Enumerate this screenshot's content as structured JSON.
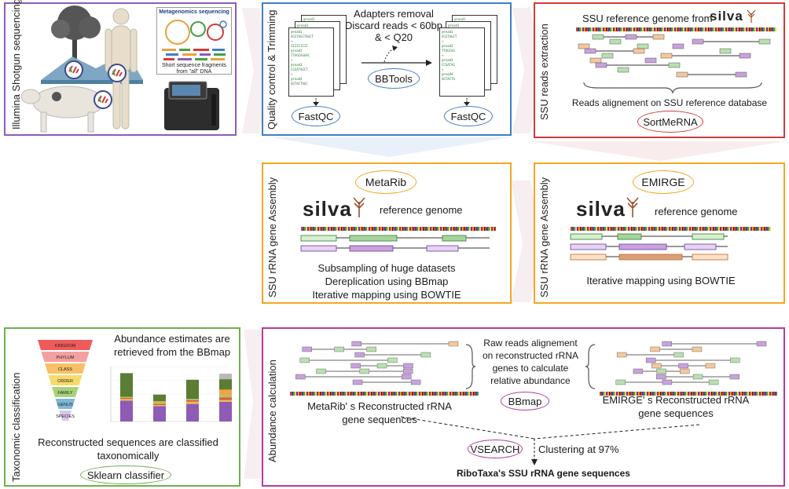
{
  "colors": {
    "purple": "#8e5bb5",
    "blue": "#3f7fc4",
    "red": "#d03b3b",
    "orange": "#f5a623",
    "green": "#6fb04d",
    "magenta": "#b73c9d",
    "chevron": "#f2e8ec"
  },
  "p1": {
    "label": "Illumina Shotgun sequencing",
    "box_title": "Metagenomics sequencing",
    "box_caption": "Short sequence fragments from \"all\" DNA"
  },
  "p2": {
    "label": "Quality control & Trimming",
    "step_text": "Adapters removal Discard reads < 60bp & < Q20",
    "tool_mid": "BBTools",
    "tool_left": "FastQC",
    "tool_right": "FastQC"
  },
  "p3": {
    "label": "SSU reads extraction",
    "title": "SSU reference genome from",
    "silva": "silva",
    "caption": "Reads alignement on SSU reference database",
    "tool": "SortMeRNA"
  },
  "p4": {
    "label": "SSU rRNA gene Assembly",
    "tool": "MetaRib",
    "silva": "silva",
    "ref": "reference genome",
    "lines": [
      "Subsampling of huge datasets",
      "Dereplication using BBmap",
      "Iterative mapping using BOWTIE"
    ]
  },
  "p5": {
    "label": "SSU rRNA gene Assembly",
    "tool": "EMIRGE",
    "silva": "silva",
    "ref": "reference genome",
    "line": "Iterative mapping using BOWTIE"
  },
  "p6": {
    "label": "Taxonomic classification",
    "title": "Abundance estimates are retrieved from the BBmap",
    "ranks": [
      "KINGDOM",
      "PHYLUM",
      "CLASS",
      "ORDER",
      "FAMILY",
      "GENUS",
      "SPECIES"
    ],
    "caption": "Reconstructed sequences are classified taxonomically",
    "tool": "Sklearn classifier"
  },
  "p7": {
    "label": "Abundance calculation",
    "mid_text": "Raw reads alignement on reconstructed rRNA genes to calculate relative abundance",
    "tool_mid": "BBmap",
    "left_caption": "MetaRib' s Reconstructed rRNA gene sequences",
    "right_caption": "EMIRGE' s Reconstructed rRNA gene sequences",
    "tool_cluster": "VSEARCH",
    "cluster_text": "Clustering at 97%",
    "final": "RiboTaxa's SSU rRNA gene sequences"
  },
  "chart_data": {
    "type": "bar",
    "categories": [
      "",
      "",
      "",
      ""
    ],
    "series": [
      {
        "values": [
          0.38,
          0.28,
          0.32,
          0.36
        ],
        "color": "#8e5bb5"
      },
      {
        "values": [
          0.03,
          0.02,
          0.04,
          0.03
        ],
        "color": "#e8c14a"
      },
      {
        "values": [
          0.02,
          0.02,
          0.03,
          0.05
        ],
        "color": "#e05a3a"
      },
      {
        "values": [
          0.02,
          0.03,
          0.02,
          0.04
        ],
        "color": "#9ccc65"
      },
      {
        "values": [
          0.0,
          0.02,
          0.0,
          0.1
        ],
        "color": "#f4a14a"
      },
      {
        "values": [
          0.43,
          0.12,
          0.35,
          0.19
        ],
        "color": "#5a7d33"
      },
      {
        "values": [
          0.0,
          0.0,
          0.0,
          0.1
        ],
        "color": "#b8b8b8"
      }
    ],
    "ylim": [
      0,
      1
    ]
  }
}
